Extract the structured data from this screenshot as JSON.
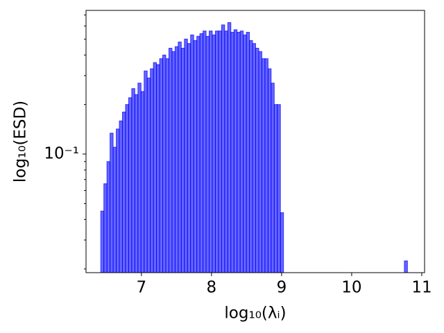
{
  "chart_data": {
    "type": "histogram",
    "xlabel": "log₁₀(λᵢ)",
    "ylabel": "log₁₀(ESD)",
    "color": "#0000ff",
    "yscale": "log",
    "xlim": [
      6.21,
      11.04
    ],
    "xticks": [
      7,
      8,
      9,
      10,
      11
    ],
    "ylim": [
      0.019,
      0.747
    ],
    "yticks": [
      {
        "value": 0.1,
        "label": "10⁻¹"
      }
    ],
    "yminorticks": [
      0.02,
      0.03,
      0.04,
      0.05,
      0.06,
      0.07,
      0.08,
      0.09,
      0.2,
      0.3,
      0.4,
      0.5,
      0.6,
      0.7
    ],
    "bins": [
      6.42,
      6.4642,
      6.5084,
      6.5526,
      6.5968,
      6.641,
      6.6852,
      6.7294,
      6.7736,
      6.8178,
      6.862,
      6.9062,
      6.9504,
      6.9946,
      7.0388,
      7.083,
      7.1272,
      7.1714,
      7.2156,
      7.2598,
      7.304,
      7.3482,
      7.3924,
      7.4366,
      7.4808,
      7.525,
      7.5692,
      7.6134,
      7.6576,
      7.7018,
      7.746,
      7.7902,
      7.8344,
      7.8786,
      7.9228,
      7.967,
      8.0112,
      8.0554,
      8.0996,
      8.1438,
      8.188,
      8.2322,
      8.2764,
      8.3206,
      8.3648,
      8.409,
      8.4532,
      8.4974,
      8.5416,
      8.5858,
      8.63,
      8.6742,
      8.7184,
      8.7626,
      8.8068,
      8.851,
      8.8952,
      8.9394,
      8.9836,
      9.0278,
      9.072,
      9.1162,
      9.1604,
      9.2046,
      9.2488,
      9.293,
      9.3372,
      9.3814,
      9.4256,
      9.4698,
      9.514,
      9.5582,
      9.6024,
      9.6466,
      9.6908,
      9.735,
      9.7792,
      9.8234,
      9.8676,
      9.9118,
      9.956,
      10.0002,
      10.0444,
      10.0886,
      10.1328,
      10.177,
      10.2212,
      10.2654,
      10.3096,
      10.3538,
      10.398,
      10.4422,
      10.4864,
      10.5306,
      10.5748,
      10.619,
      10.6632,
      10.7074,
      10.7516,
      10.7958,
      10.84
    ],
    "values": [
      0.045,
      0.066,
      0.09,
      0.134,
      0.11,
      0.142,
      0.159,
      0.18,
      0.2,
      0.22,
      0.25,
      0.23,
      0.27,
      0.24,
      0.32,
      0.29,
      0.33,
      0.36,
      0.35,
      0.38,
      0.4,
      0.38,
      0.44,
      0.42,
      0.45,
      0.48,
      0.44,
      0.5,
      0.47,
      0.53,
      0.49,
      0.52,
      0.54,
      0.56,
      0.52,
      0.56,
      0.53,
      0.56,
      0.56,
      0.61,
      0.56,
      0.63,
      0.55,
      0.57,
      0.55,
      0.56,
      0.53,
      0.55,
      0.49,
      0.47,
      0.44,
      0.42,
      0.38,
      0.38,
      0.33,
      0.27,
      0.2,
      0.2,
      0.044,
      0,
      0,
      0,
      0,
      0,
      0,
      0,
      0,
      0,
      0,
      0,
      0,
      0,
      0,
      0,
      0,
      0,
      0,
      0,
      0,
      0,
      0,
      0,
      0,
      0,
      0,
      0,
      0,
      0,
      0,
      0,
      0,
      0,
      0,
      0,
      0,
      0,
      0,
      0,
      0.0224,
      0
    ]
  }
}
